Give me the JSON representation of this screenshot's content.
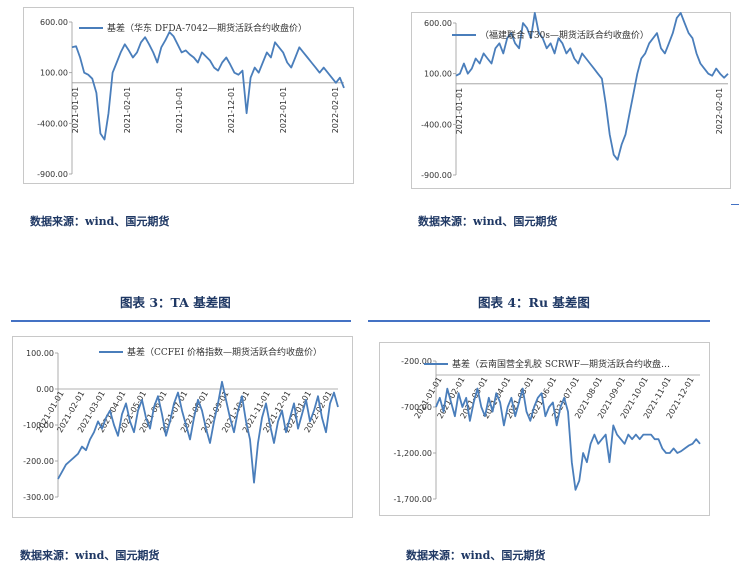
{
  "captions": {
    "source_top_left": "数据来源：wind、国元期货",
    "source_top_right": "数据来源：wind、国元期货",
    "fig3": "图表 3：TA 基差图",
    "fig4": "图表 4：Ru 基差图",
    "source_bottom_left": "数据来源：wind、国元期货",
    "source_bottom_right": "数据来源：wind、国元期货"
  },
  "chart_data": [
    {
      "type": "line",
      "legend": "基差（华东 DFDA-7042—期货活跃合约收盘价）",
      "ylim": [
        -900,
        600
      ],
      "yticks": [
        600,
        100,
        -400,
        -900
      ],
      "ytick_labels": [
        "600.00",
        "100.00",
        "-400.00",
        "-900.00"
      ],
      "xticks": [
        "2021-01-01",
        "2021-02-01",
        "2021-10-01",
        "2021-12-01",
        "2022-01-01",
        "2022-02-01"
      ],
      "color": "#4a7ebb",
      "series": [
        {
          "values": [
            350,
            360,
            250,
            100,
            80,
            40,
            -100,
            -500,
            -560,
            -300,
            100,
            200,
            300,
            380,
            320,
            250,
            300,
            400,
            450,
            380,
            300,
            200,
            350,
            420,
            500,
            460,
            380,
            300,
            320,
            280,
            250,
            200,
            300,
            260,
            220,
            150,
            120,
            200,
            250,
            180,
            100,
            80,
            120,
            -300,
            50,
            150,
            100,
            200,
            300,
            250,
            400,
            350,
            300,
            200,
            150,
            250,
            350,
            300,
            250,
            200,
            150,
            100,
            150,
            100,
            50,
            0,
            50,
            -50
          ]
        }
      ]
    },
    {
      "type": "line",
      "legend": "（福建联合 T30s—期货活跃合约收盘价）",
      "ylim": [
        -900,
        600
      ],
      "yticks": [
        600,
        100,
        -400,
        -900
      ],
      "ytick_labels": [
        "600.00",
        "100.00",
        "-400.00",
        "-900.00"
      ],
      "xticks": [
        "2021-01-01",
        "2022-02-01"
      ],
      "color": "#4a7ebb",
      "series": [
        {
          "values": [
            80,
            100,
            200,
            100,
            150,
            250,
            200,
            300,
            250,
            200,
            350,
            400,
            300,
            450,
            500,
            400,
            350,
            600,
            550,
            450,
            700,
            500,
            450,
            350,
            400,
            300,
            450,
            400,
            300,
            350,
            250,
            200,
            300,
            250,
            200,
            150,
            100,
            50,
            -200,
            -500,
            -700,
            -750,
            -600,
            -500,
            -300,
            -100,
            100,
            250,
            300,
            400,
            450,
            500,
            350,
            300,
            400,
            500,
            650,
            700,
            600,
            500,
            450,
            300,
            200,
            150,
            100,
            80,
            150,
            100,
            60,
            100
          ]
        }
      ]
    },
    {
      "type": "line",
      "legend": "基差（CCFEI 价格指数—期货活跃合约收盘价）",
      "ylim": [
        -300,
        100
      ],
      "yticks": [
        100,
        0,
        -100,
        -200,
        -300
      ],
      "ytick_labels": [
        "100.00",
        "0.00",
        "-100.00",
        "-200.00",
        "-300.00"
      ],
      "xticks": [
        "2021-01-01",
        "2021-02-01",
        "2021-03-01",
        "2021-04-01",
        "2021-05-01",
        "2021-06-01",
        "2021-07-01",
        "2021-08-01",
        "2021-09-01",
        "2021-10-01",
        "2021-11-01",
        "2021-12-01",
        "2022-01-01",
        "2022-02-01"
      ],
      "color": "#4a7ebb",
      "series": [
        {
          "values": [
            -250,
            -230,
            -210,
            -200,
            -190,
            -180,
            -160,
            -170,
            -140,
            -120,
            -90,
            -110,
            -80,
            -60,
            -100,
            -130,
            -70,
            -40,
            -90,
            -120,
            -60,
            -30,
            -80,
            -110,
            -50,
            -20,
            -70,
            -130,
            -90,
            -40,
            -10,
            -60,
            -100,
            -140,
            -80,
            -30,
            -60,
            -110,
            -150,
            -90,
            -40,
            20,
            -30,
            -80,
            -120,
            -60,
            -20,
            -90,
            -140,
            -260,
            -150,
            -80,
            -40,
            -100,
            -150,
            -90,
            -60,
            -120,
            -80,
            -40,
            -110,
            -70,
            -30,
            -90,
            -60,
            -20,
            -80,
            -120,
            -40,
            -10,
            -50
          ]
        }
      ]
    },
    {
      "type": "line",
      "legend": "基差（云南国营全乳胶 SCRWF—期货活跃合约收盘…",
      "ylim": [
        -1700,
        -200
      ],
      "yticks": [
        -200,
        -700,
        -1200,
        -1700
      ],
      "ytick_labels": [
        "-200.00",
        "-700.00",
        "-1,200.00",
        "-1,700.00"
      ],
      "xticks": [
        "2021-01-01",
        "2021-02-01",
        "2021-03-01",
        "2021-04-01",
        "2021-05-01",
        "2021-06-01",
        "2021-07-01",
        "2021-08-01",
        "2021-09-01",
        "2021-10-01",
        "2021-11-01",
        "2021-12-01"
      ],
      "color": "#4a7ebb",
      "series": [
        {
          "values": [
            -700,
            -600,
            -750,
            -500,
            -650,
            -800,
            -550,
            -700,
            -600,
            -850,
            -650,
            -500,
            -700,
            -800,
            -600,
            -750,
            -550,
            -650,
            -900,
            -700,
            -600,
            -800,
            -650,
            -500,
            -750,
            -850,
            -700,
            -600,
            -550,
            -800,
            -700,
            -650,
            -900,
            -700,
            -600,
            -750,
            -1300,
            -1600,
            -1500,
            -1200,
            -1300,
            -1100,
            -1000,
            -1100,
            -1050,
            -1000,
            -1300,
            -900,
            -1000,
            -1050,
            -1100,
            -1000,
            -1050,
            -1000,
            -1050,
            -1000,
            -1000,
            -1000,
            -1050,
            -1050,
            -1150,
            -1200,
            -1200,
            -1150,
            -1200,
            -1180,
            -1150,
            -1120,
            -1100,
            -1050,
            -1100
          ]
        }
      ]
    }
  ]
}
